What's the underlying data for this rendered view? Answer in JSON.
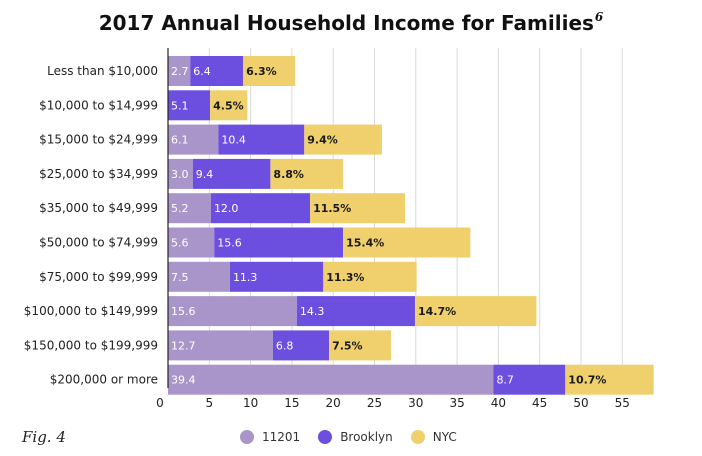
{
  "figure_label": "Fig. 4",
  "chart_data": {
    "type": "bar",
    "orientation": "horizontal",
    "stacked": true,
    "title": "2017 Annual Household Income for Families",
    "title_superscript": "6",
    "categories": [
      "Less than $10,000",
      "$10,000 to $14,999",
      "$15,000 to $24,999",
      "$25,000 to $34,999",
      "$35,000 to $49,999",
      "$50,000 to $74,999",
      "$75,000 to $99,999",
      "$100,000 to $149,999",
      "$150,000 to $199,999",
      "$200,000 or more"
    ],
    "series": [
      {
        "name": "11201",
        "color": "#a995c9",
        "values": [
          2.7,
          0,
          6.1,
          3.0,
          5.2,
          5.6,
          7.5,
          15.6,
          12.7,
          39.4
        ],
        "labels": [
          "2.7",
          "",
          "6.1",
          "3.0",
          "5.2",
          "5.6",
          "7.5",
          "15.6",
          "12.7",
          "39.4"
        ]
      },
      {
        "name": "Brooklyn",
        "color": "#6d4fe0",
        "values": [
          6.4,
          5.1,
          10.4,
          9.4,
          12.0,
          15.6,
          11.3,
          14.3,
          6.8,
          8.7
        ],
        "labels": [
          "6.4",
          "5.1",
          "10.4",
          "9.4",
          "12.0",
          "15.6",
          "11.3",
          "14.3",
          "6.8",
          "8.7"
        ]
      },
      {
        "name": "NYC",
        "color": "#f0cf6d",
        "values": [
          6.3,
          4.5,
          9.4,
          8.8,
          11.5,
          15.4,
          11.3,
          14.7,
          7.5,
          10.7
        ],
        "labels": [
          "6.3%",
          "4.5%",
          "9.4%",
          "8.8%",
          "11.5%",
          "15.4%",
          "11.3%",
          "14.7%",
          "7.5%",
          "10.7%"
        ]
      }
    ],
    "x_ticks": [
      "0",
      "5",
      "10",
      "15",
      "20",
      "25",
      "30",
      "35",
      "40",
      "45",
      "50",
      "55"
    ],
    "xlim": [
      0,
      60
    ],
    "grid": true,
    "legend_position": "bottom"
  }
}
